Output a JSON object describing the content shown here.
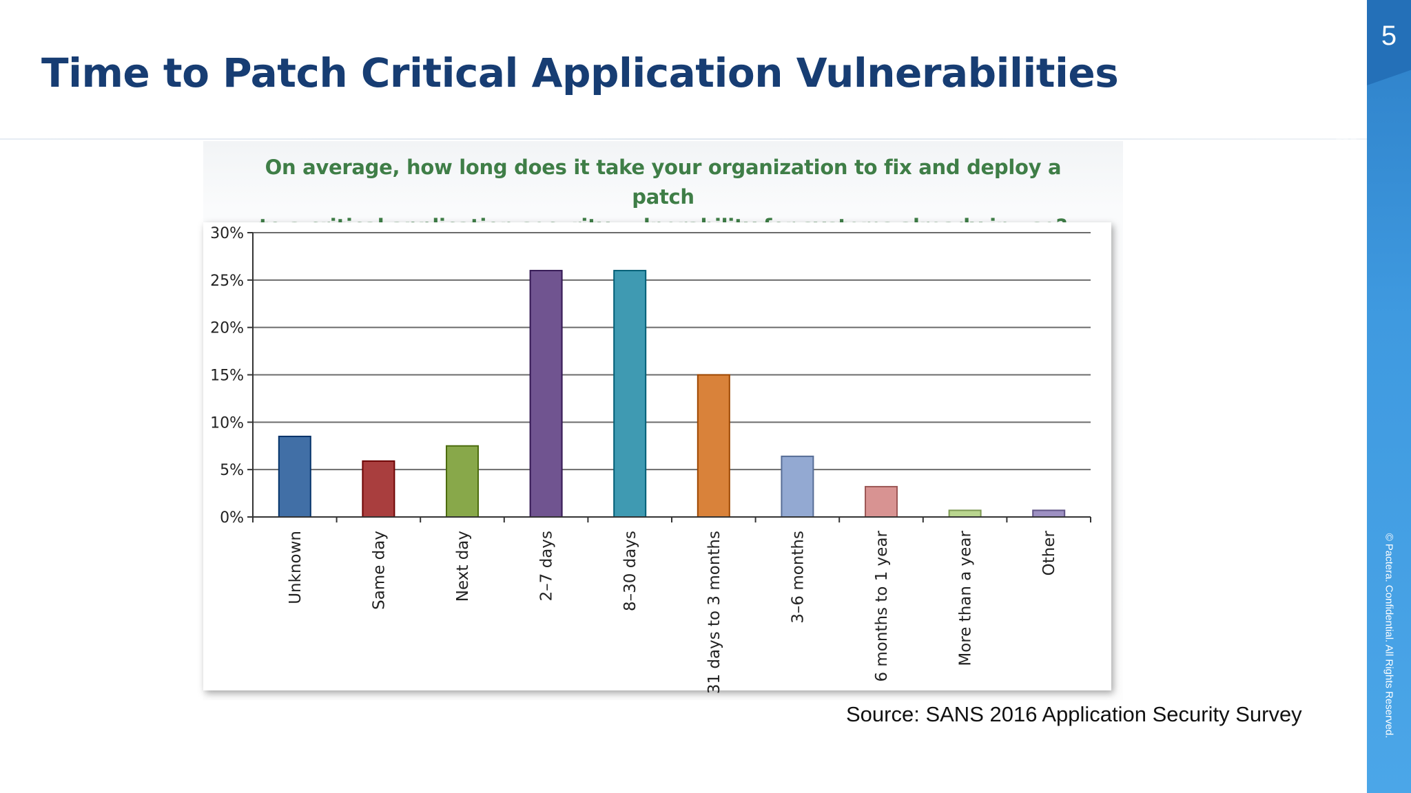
{
  "slide": {
    "title": "Time to Patch Critical Application Vulnerabilities",
    "page_number": "5",
    "brand": "pactera",
    "copyright": "© Pactera. Confidential. All Rights Reserved.",
    "source": "Source: SANS 2016 Application Security Survey"
  },
  "chart_data": {
    "type": "bar",
    "title": "On average, how long does it take your organization to fix and deploy a patch to a critical application security vulnerability for systems already in use?",
    "title_lines": [
      "On average, how long does it take your organization to fix and deploy a patch",
      "to a critical application security vulnerability for systems already in use?"
    ],
    "categories": [
      "Unknown",
      "Same day",
      "Next day",
      "2–7 days",
      "8–30 days",
      "31 days to 3 months",
      "3–6 months",
      "6 months to 1 year",
      "More than a year",
      "Other"
    ],
    "values": [
      8.5,
      5.9,
      7.5,
      26.0,
      26.0,
      15.0,
      6.4,
      3.2,
      0.7,
      0.7
    ],
    "colors": [
      "#416fa6",
      "#a93e3e",
      "#88a84a",
      "#705490",
      "#3f9ab2",
      "#d9823a",
      "#93a9d2",
      "#d89392",
      "#b9d58f",
      "#9d90c2"
    ],
    "ylim": [
      0,
      30
    ],
    "yticks": [
      0,
      5,
      10,
      15,
      20,
      25,
      30
    ],
    "ytick_labels": [
      "0%",
      "5%",
      "10%",
      "15%",
      "20%",
      "25%",
      "30%"
    ],
    "xlabel": "",
    "ylabel": "",
    "grid": true,
    "legend": "none"
  }
}
